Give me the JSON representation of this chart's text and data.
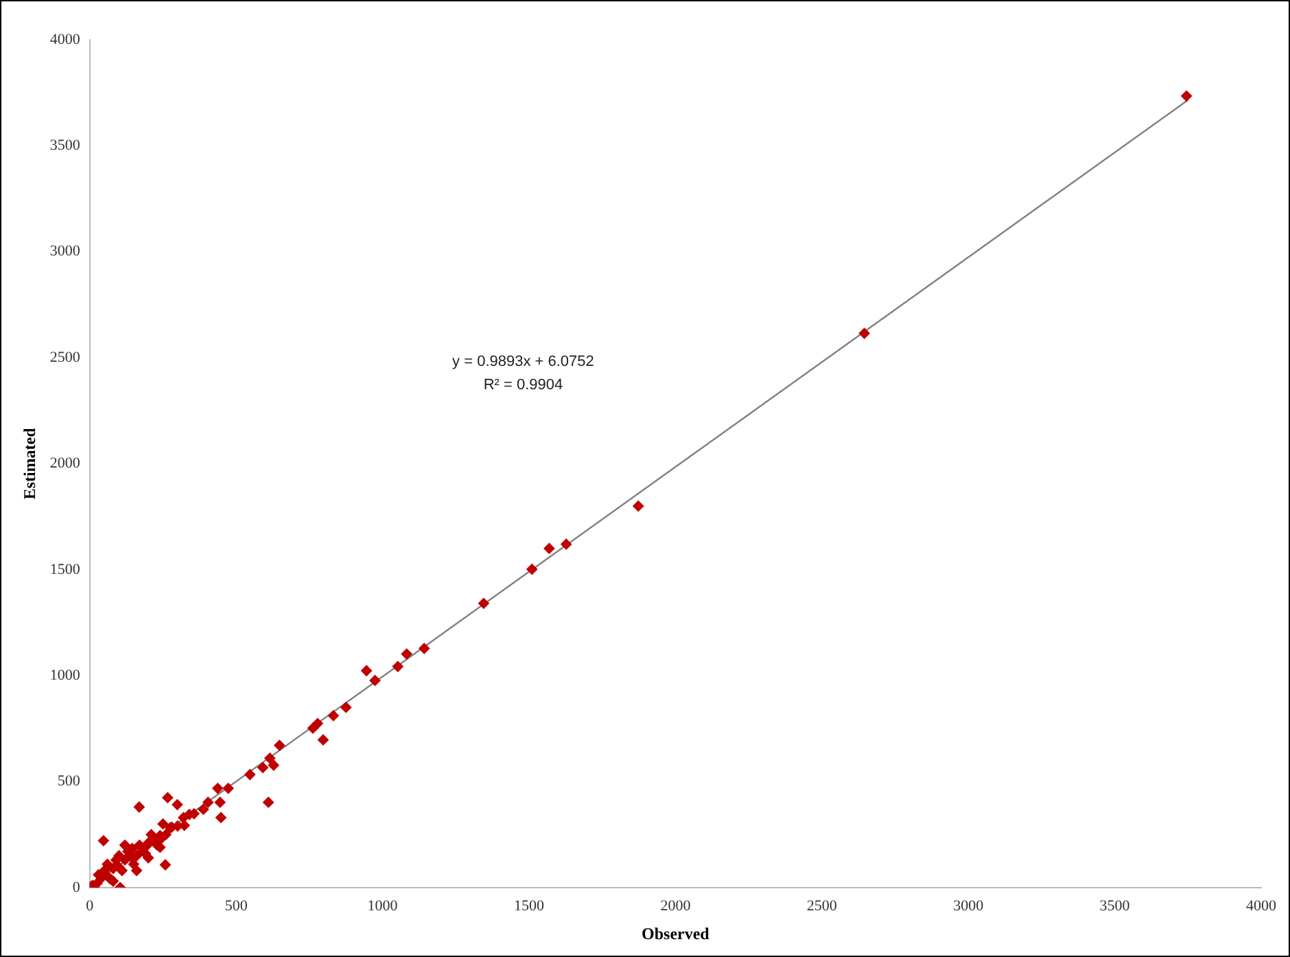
{
  "chart_data": {
    "type": "scatter",
    "xlabel": "Observed",
    "ylabel": "Estimated",
    "xlim": [
      0,
      4000
    ],
    "ylim": [
      0,
      4000
    ],
    "xticks": [
      0,
      500,
      1000,
      1500,
      2000,
      2500,
      3000,
      3500,
      4000
    ],
    "yticks": [
      0,
      500,
      1000,
      1500,
      2000,
      2500,
      3000,
      3500,
      4000
    ],
    "grid": false,
    "legend": false,
    "marker": "diamond",
    "annotations": [
      "y = 0.9893x + 6.0752",
      "R² = 0.9904"
    ],
    "series": [
      {
        "color": "#c00000",
        "x": [
          3745,
          2645,
          1873,
          1627,
          1569,
          1510,
          1345,
          1142,
          1082,
          1052,
          945,
          974,
          875,
          832,
          778,
          762,
          797,
          648,
          615,
          628,
          591,
          547,
          610,
          473,
          437,
          445,
          404,
          448,
          388,
          356,
          266,
          299,
          169,
          323,
          275,
          258,
          47,
          242,
          193,
          145,
          104,
          10,
          25,
          40,
          60,
          80,
          100,
          120,
          140,
          160,
          180,
          200,
          220,
          240,
          260,
          280,
          300,
          320,
          340,
          50,
          70,
          90,
          110,
          130,
          150,
          170,
          190,
          210,
          230,
          120,
          100,
          60,
          160,
          200,
          240,
          250,
          30,
          15,
          5,
          0,
          80
        ],
        "values": [
          3735,
          2615,
          1800,
          1620,
          1600,
          1502,
          1341,
          1128,
          1102,
          1043,
          1023,
          977,
          850,
          811,
          774,
          752,
          697,
          671,
          610,
          577,
          566,
          533,
          402,
          468,
          468,
          402,
          402,
          330,
          369,
          348,
          424,
          391,
          380,
          293,
          282,
          107,
          221,
          228,
          195,
          184,
          0,
          10,
          20,
          45,
          55,
          90,
          95,
          130,
          145,
          150,
          175,
          210,
          225,
          245,
          250,
          285,
          290,
          330,
          345,
          80,
          40,
          130,
          80,
          170,
          110,
          200,
          160,
          250,
          200,
          200,
          150,
          110,
          80,
          140,
          190,
          300,
          60,
          0,
          5,
          0,
          30
        ]
      },
      {
        "type": "line",
        "color": "#808080",
        "marker": "none",
        "x": [
          0,
          3750
        ],
        "values": [
          6,
          3716
        ]
      }
    ]
  }
}
